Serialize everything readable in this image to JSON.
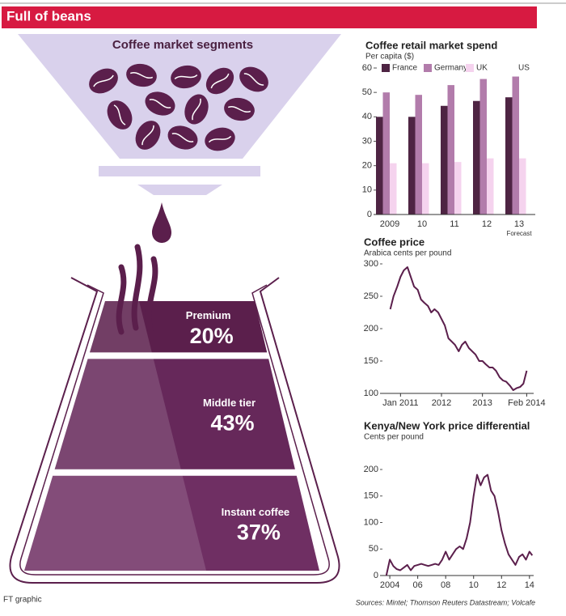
{
  "header": {
    "title": "Full of beans"
  },
  "chart_data": [
    {
      "type": "flask",
      "title": "Coffee market segments",
      "categories": [
        "Premium",
        "Middle tier",
        "Instant coffee"
      ],
      "values": [
        20,
        43,
        37
      ],
      "value_labels": [
        "20%",
        "43%",
        "37%"
      ],
      "colors": [
        "#5b1f4c",
        "#66285a",
        "#6f2f63"
      ]
    },
    {
      "type": "bar",
      "title": "Coffee retail market spend",
      "subtitle": "Per capita ($)",
      "categories": [
        "2009",
        "10",
        "11",
        "12",
        "13"
      ],
      "annotation": "Forecast",
      "series": [
        {
          "name": "France",
          "color": "#4e2443",
          "values": [
            40,
            40,
            44.5,
            46.5,
            48
          ]
        },
        {
          "name": "Germany",
          "color": "#b27cab",
          "values": [
            50,
            49,
            53,
            55.5,
            56.5
          ]
        },
        {
          "name": "UK",
          "color": "#f5d3ee",
          "values": [
            21,
            21,
            21.5,
            23,
            23
          ]
        },
        {
          "name": "US",
          "color": "#ffffff",
          "values": [
            null,
            null,
            null,
            null,
            null
          ]
        }
      ],
      "ylim": [
        0,
        60
      ],
      "yticks": [
        0,
        10,
        20,
        30,
        40,
        50,
        60
      ]
    },
    {
      "type": "line",
      "title": "Coffee price",
      "subtitle": "Arabica cents per pound",
      "color": "#5b1f4c",
      "x": [
        2010.75,
        2010.83,
        2010.92,
        2011.0,
        2011.08,
        2011.17,
        2011.25,
        2011.33,
        2011.42,
        2011.5,
        2011.58,
        2011.67,
        2011.75,
        2011.83,
        2011.92,
        2012.0,
        2012.08,
        2012.17,
        2012.25,
        2012.33,
        2012.42,
        2012.5,
        2012.58,
        2012.67,
        2012.75,
        2012.83,
        2012.92,
        2013.0,
        2013.08,
        2013.17,
        2013.25,
        2013.33,
        2013.42,
        2013.5,
        2013.58,
        2013.67,
        2013.75,
        2013.83,
        2013.92,
        2014.0,
        2014.08
      ],
      "values": [
        230,
        250,
        265,
        280,
        290,
        295,
        280,
        265,
        260,
        245,
        240,
        235,
        225,
        230,
        225,
        215,
        205,
        185,
        180,
        175,
        165,
        175,
        180,
        170,
        165,
        160,
        150,
        150,
        145,
        140,
        140,
        135,
        125,
        120,
        118,
        112,
        105,
        108,
        110,
        115,
        135
      ],
      "xlim": [
        2010.5,
        2014.25
      ],
      "xticks": [
        {
          "value": 2011,
          "label": "Jan 2011"
        },
        2012,
        2013,
        {
          "value": 2014.08,
          "label": "Feb 2014"
        }
      ],
      "ylim": [
        100,
        300
      ],
      "yticks": [
        100,
        150,
        200,
        250,
        300
      ]
    },
    {
      "type": "line",
      "title": "Kenya/New York price differential",
      "subtitle": "Cents per pound",
      "color": "#5b1f4c",
      "x": [
        2003.75,
        2004.0,
        2004.25,
        2004.5,
        2004.75,
        2005.0,
        2005.25,
        2005.5,
        2005.75,
        2006.0,
        2006.25,
        2006.5,
        2006.75,
        2007.0,
        2007.25,
        2007.5,
        2007.75,
        2008.0,
        2008.25,
        2008.5,
        2008.75,
        2009.0,
        2009.25,
        2009.5,
        2009.75,
        2010.0,
        2010.25,
        2010.5,
        2010.75,
        2011.0,
        2011.25,
        2011.5,
        2011.75,
        2012.0,
        2012.25,
        2012.5,
        2012.75,
        2013.0,
        2013.25,
        2013.5,
        2013.75,
        2014.0,
        2014.2
      ],
      "values": [
        0,
        30,
        18,
        12,
        10,
        15,
        20,
        10,
        18,
        20,
        22,
        20,
        18,
        20,
        22,
        20,
        30,
        45,
        30,
        40,
        50,
        55,
        50,
        70,
        100,
        150,
        190,
        170,
        185,
        190,
        160,
        150,
        120,
        85,
        60,
        40,
        30,
        20,
        35,
        40,
        30,
        45,
        38
      ],
      "xlim": [
        2003.3,
        2014.3
      ],
      "xticks": [
        2004,
        {
          "value": 2006,
          "label": "06"
        },
        {
          "value": 2008,
          "label": "08"
        },
        {
          "value": 2010,
          "label": "10"
        },
        {
          "value": 2012,
          "label": "12"
        },
        {
          "value": 2014,
          "label": "14"
        }
      ],
      "ylim": [
        0,
        200
      ],
      "yticks": [
        0,
        50,
        100,
        150,
        200
      ]
    }
  ],
  "footer": {
    "credit": "FT graphic",
    "sources": "Sources: Mintel; Thomson Reuters Datastream; Volcafe"
  }
}
